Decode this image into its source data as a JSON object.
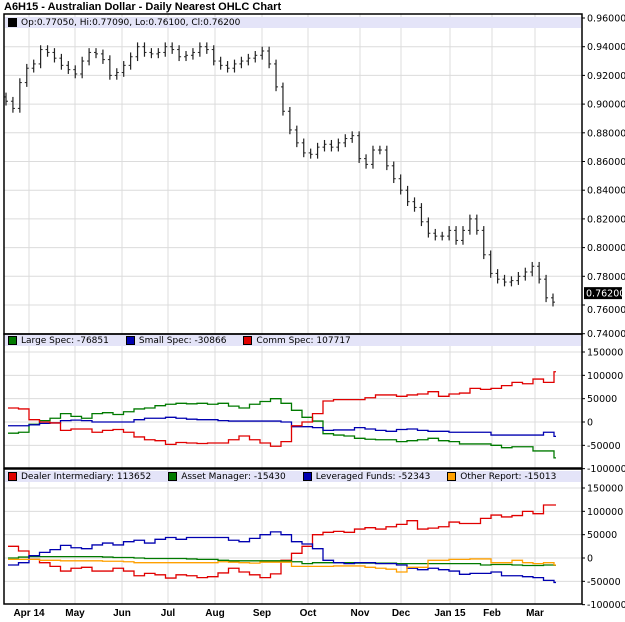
{
  "title": "A6H15 - Australian Dollar - Daily Nearest OHLC Chart",
  "price_legend": "Op:0.77050, Hi:0.77090, Lo:0.76100, Cl:0.76200",
  "last_price_label": "0.76200",
  "cot_legend": [
    {
      "label": "Large Spec: -76851",
      "color": "#007a00"
    },
    {
      "label": "Small Spec: -30866",
      "color": "#0000b0"
    },
    {
      "label": "Comm Spec: 107717",
      "color": "#e00000"
    }
  ],
  "tff_legend": [
    {
      "label": "Dealer Intermediary: 113652",
      "color": "#e00000"
    },
    {
      "label": "Asset Manager: -15430",
      "color": "#007a00"
    },
    {
      "label": "Leveraged Funds: -52343",
      "color": "#0000b0"
    },
    {
      "label": "Other Report: -15013",
      "color": "#ffa000"
    }
  ],
  "chart_data": [
    {
      "type": "ohlc",
      "title": "A6H15 - Australian Dollar - Daily Nearest OHLC Chart",
      "ylim": [
        0.74,
        0.96
      ],
      "y_ticks": [
        "0.96000",
        "0.94000",
        "0.92000",
        "0.90000",
        "0.88000",
        "0.86000",
        "0.84000",
        "0.82000",
        "0.80000",
        "0.78000",
        "0.76000",
        "0.74000"
      ],
      "grid": true,
      "last": {
        "open": 0.7705,
        "high": 0.7709,
        "low": 0.761,
        "close": 0.762
      },
      "close": [
        0.902,
        0.897,
        0.915,
        0.925,
        0.928,
        0.938,
        0.936,
        0.932,
        0.927,
        0.924,
        0.921,
        0.93,
        0.936,
        0.935,
        0.931,
        0.92,
        0.922,
        0.927,
        0.933,
        0.94,
        0.936,
        0.935,
        0.936,
        0.94,
        0.938,
        0.933,
        0.934,
        0.936,
        0.94,
        0.938,
        0.93,
        0.927,
        0.925,
        0.928,
        0.93,
        0.932,
        0.934,
        0.937,
        0.928,
        0.912,
        0.895,
        0.882,
        0.873,
        0.866,
        0.865,
        0.87,
        0.872,
        0.87,
        0.873,
        0.876,
        0.878,
        0.862,
        0.858,
        0.868,
        0.868,
        0.857,
        0.848,
        0.84,
        0.832,
        0.828,
        0.818,
        0.81,
        0.808,
        0.808,
        0.812,
        0.805,
        0.812,
        0.82,
        0.812,
        0.795,
        0.782,
        0.778,
        0.776,
        0.777,
        0.78,
        0.783,
        0.787,
        0.778,
        0.765,
        0.762
      ],
      "x_ticks": [
        "Apr 14",
        "May",
        "Jun",
        "Jul",
        "Aug",
        "Sep",
        "Oct",
        "Nov",
        "Dec",
        "Jan 15",
        "Feb",
        "Mar"
      ]
    },
    {
      "type": "line",
      "step": true,
      "ylim": [
        -100000,
        150000
      ],
      "y_ticks": [
        "150000",
        "100000",
        "50000",
        "0",
        "-50000",
        "-100000"
      ],
      "series": [
        {
          "name": "Large Spec",
          "color": "#007a00",
          "values": [
            -24000,
            -22000,
            -5000,
            3000,
            8000,
            18000,
            12000,
            8000,
            18000,
            20000,
            16000,
            22000,
            28000,
            30000,
            35000,
            38000,
            40000,
            39000,
            40000,
            38000,
            40000,
            34000,
            30000,
            38000,
            44000,
            50000,
            40000,
            25000,
            10000,
            2000,
            -25000,
            -28000,
            -30000,
            -35000,
            -37000,
            -38000,
            -38000,
            -42000,
            -40000,
            -38000,
            -35000,
            -40000,
            -42000,
            -47000,
            -47000,
            -47000,
            -50000,
            -55000,
            -53000,
            -53000,
            -62000,
            -62000,
            -76851
          ]
        },
        {
          "name": "Small Spec",
          "color": "#0000b0",
          "values": [
            -8000,
            -8000,
            -6000,
            -3000,
            -2000,
            3000,
            4000,
            3000,
            0,
            0,
            0,
            0,
            5000,
            8000,
            8000,
            10000,
            8000,
            6000,
            5000,
            5000,
            3000,
            2000,
            2000,
            2000,
            2000,
            2000,
            0,
            -10000,
            -10000,
            -12000,
            -18000,
            -17000,
            -17000,
            -12000,
            -15000,
            -18000,
            -20000,
            -16000,
            -15000,
            -18000,
            -20000,
            -20000,
            -22000,
            -22000,
            -22000,
            -22000,
            -28000,
            -28000,
            -28000,
            -28000,
            -28000,
            -22000,
            -30866
          ]
        },
        {
          "name": "Comm Spec",
          "color": "#e00000",
          "values": [
            30000,
            28000,
            5000,
            0,
            -2000,
            -18000,
            -15000,
            -15000,
            -22000,
            -18000,
            -16000,
            -22000,
            -32000,
            -38000,
            -40000,
            -48000,
            -44000,
            -45000,
            -46000,
            -45000,
            -45000,
            -38000,
            -30000,
            -38000,
            -45000,
            -52000,
            -42000,
            -8000,
            0,
            18000,
            45000,
            48000,
            48000,
            48000,
            52000,
            58000,
            58000,
            55000,
            58000,
            60000,
            65000,
            55000,
            60000,
            62000,
            72000,
            70000,
            72000,
            78000,
            85000,
            82000,
            92000,
            85000,
            107717
          ]
        }
      ]
    },
    {
      "type": "line",
      "step": true,
      "ylim": [
        -100000,
        150000
      ],
      "y_ticks": [
        "150000",
        "100000",
        "50000",
        "0",
        "-50000",
        "-100000"
      ],
      "series": [
        {
          "name": "Dealer Intermediary",
          "color": "#e00000",
          "values": [
            25000,
            15000,
            -3000,
            -10000,
            -18000,
            -28000,
            -22000,
            -20000,
            -28000,
            -28000,
            -22000,
            -28000,
            -38000,
            -33000,
            -36000,
            -43000,
            -36000,
            -38000,
            -42000,
            -40000,
            -32000,
            -22000,
            -30000,
            -36000,
            -42000,
            -34000,
            -5000,
            10000,
            25000,
            50000,
            55000,
            57000,
            55000,
            62000,
            65000,
            62000,
            67000,
            72000,
            80000,
            62000,
            64000,
            67000,
            77000,
            74000,
            74000,
            85000,
            92000,
            88000,
            91000,
            100000,
            95000,
            113652,
            113652
          ]
        },
        {
          "name": "Asset Manager",
          "color": "#007a00",
          "values": [
            0,
            2000,
            3000,
            3000,
            3000,
            3000,
            3000,
            3000,
            3000,
            2000,
            1000,
            1000,
            0,
            -1000,
            -1000,
            -1000,
            -1000,
            -2000,
            -3000,
            -3000,
            -5000,
            -6000,
            -6000,
            -6000,
            -6000,
            -6000,
            -6000,
            -8000,
            -12000,
            -10000,
            -10000,
            -10000,
            -10000,
            -11000,
            -11000,
            -11000,
            -11000,
            -12000,
            -12000,
            -12000,
            -12000,
            -12000,
            -12000,
            -12000,
            -12000,
            -15000,
            -14000,
            -14000,
            -15000,
            -16000,
            -16000,
            -15000,
            -15430
          ]
        },
        {
          "name": "Leveraged Funds",
          "color": "#0000b0",
          "values": [
            -15000,
            -10000,
            5000,
            12000,
            18000,
            27000,
            22000,
            20000,
            28000,
            32000,
            28000,
            35000,
            38000,
            32000,
            40000,
            44000,
            40000,
            44000,
            44000,
            44000,
            44000,
            38000,
            35000,
            42000,
            50000,
            56000,
            50000,
            35000,
            30000,
            20000,
            -5000,
            -10000,
            -12000,
            -10000,
            -10000,
            -12000,
            -12000,
            -15000,
            -22000,
            -25000,
            -22000,
            -25000,
            -28000,
            -35000,
            -33000,
            -33000,
            -30000,
            -38000,
            -38000,
            -40000,
            -42000,
            -48000,
            -52343
          ]
        },
        {
          "name": "Other Report",
          "color": "#ffa000",
          "values": [
            -3000,
            -3000,
            -3000,
            -5000,
            -5000,
            -6000,
            -6000,
            -6000,
            -6000,
            -7000,
            -7000,
            -8000,
            -10000,
            -10000,
            -10000,
            -10000,
            -10000,
            -10000,
            -10000,
            -10000,
            -8000,
            -9000,
            -10000,
            -11000,
            -9000,
            -9000,
            -9000,
            -18000,
            -18000,
            -18000,
            -18000,
            -17000,
            -17000,
            -17000,
            -20000,
            -22000,
            -24000,
            -30000,
            -20000,
            -20000,
            -5000,
            -5000,
            -3000,
            -3000,
            -2000,
            -2000,
            -10000,
            -10000,
            -5000,
            -10000,
            -12000,
            -10000,
            -15013
          ]
        }
      ]
    }
  ]
}
